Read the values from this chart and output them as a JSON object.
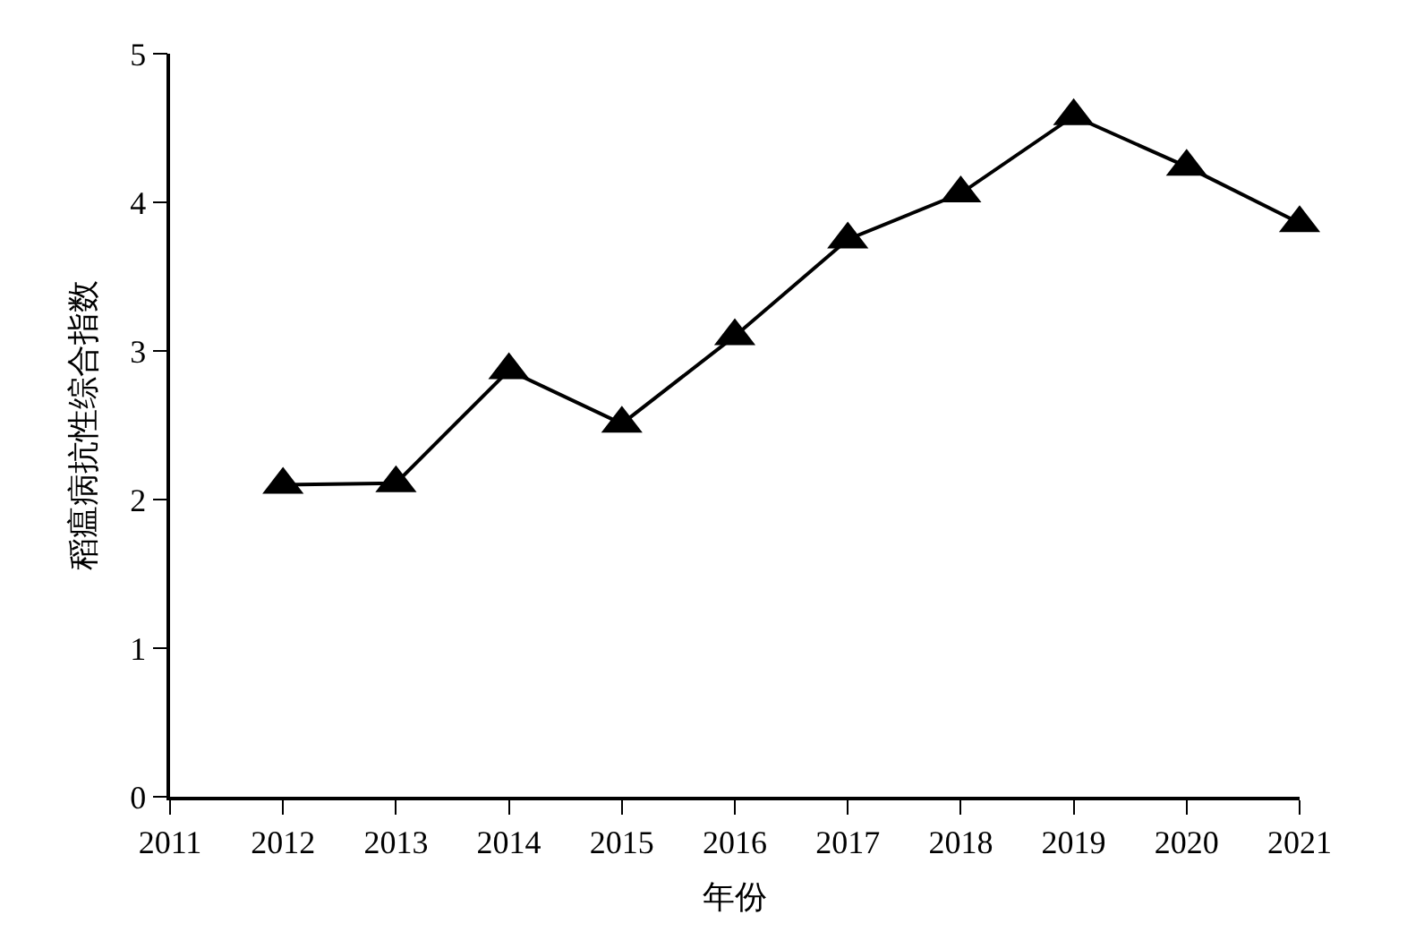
{
  "chart_data": {
    "type": "line",
    "xlabel": "年份",
    "ylabel": "稻瘟病抗性综合指数",
    "x": [
      2012,
      2013,
      2014,
      2015,
      2016,
      2017,
      2018,
      2019,
      2020,
      2021
    ],
    "series": [
      {
        "color": "#000000",
        "values": [
          2.1,
          2.11,
          2.87,
          2.51,
          3.1,
          3.75,
          4.06,
          4.58,
          4.24,
          3.86
        ]
      }
    ],
    "xlim": [
      2011,
      2021
    ],
    "xticks": [
      2011,
      2012,
      2013,
      2014,
      2015,
      2016,
      2017,
      2018,
      2019,
      2020,
      2021
    ],
    "ylim": [
      0,
      5
    ],
    "yticks": [
      0,
      1,
      2,
      3,
      4,
      5
    ],
    "legend": false,
    "marker": "triangle",
    "line_style": "solid"
  }
}
